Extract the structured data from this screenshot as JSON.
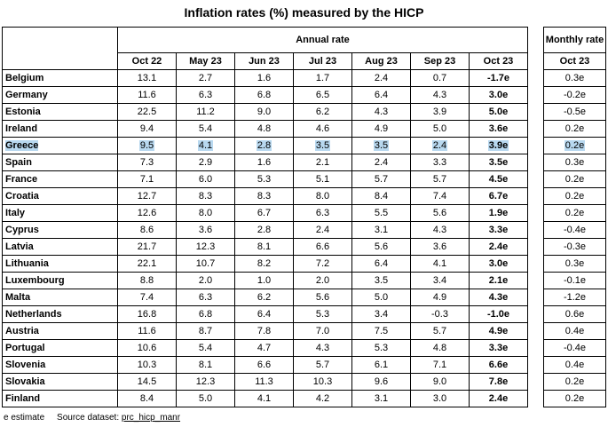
{
  "title": "Inflation rates (%) measured by the HICP",
  "annual_header": "Annual rate",
  "monthly_header": "Monthly rate",
  "columns": [
    "Oct 22",
    "May 23",
    "Jun 23",
    "Jul 23",
    "Aug 23",
    "Sep 23",
    "Oct 23"
  ],
  "monthly_column": "Oct 23",
  "highlight_row": "Greece",
  "rows": [
    {
      "country": "Belgium",
      "values": [
        "13.1",
        "2.7",
        "1.6",
        "1.7",
        "2.4",
        "0.7",
        "-1.7e"
      ],
      "monthly": "0.3e"
    },
    {
      "country": "Germany",
      "values": [
        "11.6",
        "6.3",
        "6.8",
        "6.5",
        "6.4",
        "4.3",
        "3.0e"
      ],
      "monthly": "-0.2e"
    },
    {
      "country": "Estonia",
      "values": [
        "22.5",
        "11.2",
        "9.0",
        "6.2",
        "4.3",
        "3.9",
        "5.0e"
      ],
      "monthly": "-0.5e"
    },
    {
      "country": "Ireland",
      "values": [
        "9.4",
        "5.4",
        "4.8",
        "4.6",
        "4.9",
        "5.0",
        "3.6e"
      ],
      "monthly": "0.2e"
    },
    {
      "country": "Greece",
      "values": [
        "9.5",
        "4.1",
        "2.8",
        "3.5",
        "3.5",
        "2.4",
        "3.9e"
      ],
      "monthly": "0.2e"
    },
    {
      "country": "Spain",
      "values": [
        "7.3",
        "2.9",
        "1.6",
        "2.1",
        "2.4",
        "3.3",
        "3.5e"
      ],
      "monthly": "0.3e"
    },
    {
      "country": "France",
      "values": [
        "7.1",
        "6.0",
        "5.3",
        "5.1",
        "5.7",
        "5.7",
        "4.5e"
      ],
      "monthly": "0.2e"
    },
    {
      "country": "Croatia",
      "values": [
        "12.7",
        "8.3",
        "8.3",
        "8.0",
        "8.4",
        "7.4",
        "6.7e"
      ],
      "monthly": "0.2e"
    },
    {
      "country": "Italy",
      "values": [
        "12.6",
        "8.0",
        "6.7",
        "6.3",
        "5.5",
        "5.6",
        "1.9e"
      ],
      "monthly": "0.2e"
    },
    {
      "country": "Cyprus",
      "values": [
        "8.6",
        "3.6",
        "2.8",
        "2.4",
        "3.1",
        "4.3",
        "3.3e"
      ],
      "monthly": "-0.4e"
    },
    {
      "country": "Latvia",
      "values": [
        "21.7",
        "12.3",
        "8.1",
        "6.6",
        "5.6",
        "3.6",
        "2.4e"
      ],
      "monthly": "-0.3e"
    },
    {
      "country": "Lithuania",
      "values": [
        "22.1",
        "10.7",
        "8.2",
        "7.2",
        "6.4",
        "4.1",
        "3.0e"
      ],
      "monthly": "0.3e"
    },
    {
      "country": "Luxembourg",
      "values": [
        "8.8",
        "2.0",
        "1.0",
        "2.0",
        "3.5",
        "3.4",
        "2.1e"
      ],
      "monthly": "-0.1e"
    },
    {
      "country": "Malta",
      "values": [
        "7.4",
        "6.3",
        "6.2",
        "5.6",
        "5.0",
        "4.9",
        "4.3e"
      ],
      "monthly": "-1.2e"
    },
    {
      "country": "Netherlands",
      "values": [
        "16.8",
        "6.8",
        "6.4",
        "5.3",
        "3.4",
        "-0.3",
        "-1.0e"
      ],
      "monthly": "0.6e"
    },
    {
      "country": "Austria",
      "values": [
        "11.6",
        "8.7",
        "7.8",
        "7.0",
        "7.5",
        "5.7",
        "4.9e"
      ],
      "monthly": "0.4e"
    },
    {
      "country": "Portugal",
      "values": [
        "10.6",
        "5.4",
        "4.7",
        "4.3",
        "5.3",
        "4.8",
        "3.3e"
      ],
      "monthly": "-0.4e"
    },
    {
      "country": "Slovenia",
      "values": [
        "10.3",
        "8.1",
        "6.6",
        "5.7",
        "6.1",
        "7.1",
        "6.6e"
      ],
      "monthly": "0.4e"
    },
    {
      "country": "Slovakia",
      "values": [
        "14.5",
        "12.3",
        "11.3",
        "10.3",
        "9.6",
        "9.0",
        "7.8e"
      ],
      "monthly": "0.2e"
    },
    {
      "country": "Finland",
      "values": [
        "8.4",
        "5.0",
        "4.1",
        "4.2",
        "3.1",
        "3.0",
        "2.4e"
      ],
      "monthly": "0.2e"
    }
  ],
  "footer": {
    "note": "e estimate",
    "source_label": "Source dataset:",
    "source_link": "prc_hicp_manr"
  },
  "highlight_color": "#b8d8ef"
}
